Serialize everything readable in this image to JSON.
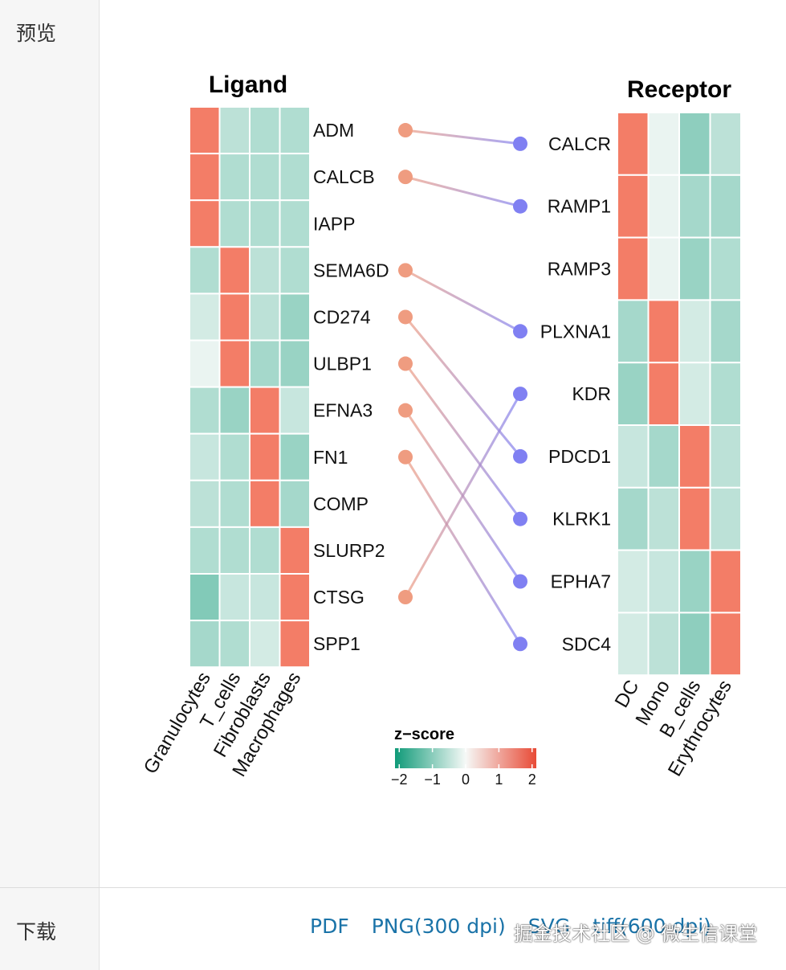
{
  "page": {
    "preview_label": "预览",
    "download_label": "下载",
    "download_links": [
      "PDF",
      "PNG(300 dpi)",
      "SVG",
      "tiff(600 dpi)"
    ],
    "watermark": "掘金技术社区 @ 微生信课堂"
  },
  "chart_data": {
    "type": "heatmap",
    "ligand": {
      "title": "Ligand",
      "rows": [
        "ADM",
        "CALCB",
        "IAPP",
        "SEMA6D",
        "CD274",
        "ULBP1",
        "EFNA3",
        "FN1",
        "COMP",
        "SLURP2",
        "CTSG",
        "SPP1"
      ],
      "columns": [
        "Granulocytes",
        "T_cells",
        "Fibroblasts",
        "Macrophages"
      ],
      "values": [
        [
          2.0,
          -0.5,
          -0.6,
          -0.6
        ],
        [
          2.0,
          -0.6,
          -0.6,
          -0.6
        ],
        [
          2.0,
          -0.6,
          -0.6,
          -0.6
        ],
        [
          -0.6,
          2.0,
          -0.5,
          -0.6
        ],
        [
          -0.3,
          2.0,
          -0.5,
          -0.8
        ],
        [
          -0.1,
          2.0,
          -0.7,
          -0.8
        ],
        [
          -0.6,
          -0.8,
          2.0,
          -0.4
        ],
        [
          -0.4,
          -0.6,
          2.0,
          -0.8
        ],
        [
          -0.5,
          -0.6,
          2.0,
          -0.7
        ],
        [
          -0.6,
          -0.6,
          -0.6,
          2.0
        ],
        [
          -1.0,
          -0.4,
          -0.4,
          2.0
        ],
        [
          -0.7,
          -0.6,
          -0.3,
          2.0
        ]
      ]
    },
    "receptor": {
      "title": "Receptor",
      "rows": [
        "CALCR",
        "RAMP1",
        "RAMP3",
        "PLXNA1",
        "KDR",
        "PDCD1",
        "KLRK1",
        "EPHA7",
        "SDC4"
      ],
      "columns": [
        "DC",
        "Mono",
        "B_cells",
        "Erythrocytes"
      ],
      "values": [
        [
          2.0,
          -0.1,
          -0.9,
          -0.5
        ],
        [
          2.0,
          -0.1,
          -0.7,
          -0.7
        ],
        [
          2.0,
          -0.1,
          -0.8,
          -0.6
        ],
        [
          -0.7,
          2.0,
          -0.3,
          -0.7
        ],
        [
          -0.8,
          2.0,
          -0.3,
          -0.6
        ],
        [
          -0.4,
          -0.7,
          2.0,
          -0.5
        ],
        [
          -0.7,
          -0.5,
          2.0,
          -0.5
        ],
        [
          -0.3,
          -0.4,
          -0.8,
          2.0
        ],
        [
          -0.3,
          -0.5,
          -0.9,
          2.0
        ]
      ]
    },
    "links": [
      [
        "ADM",
        "CALCR"
      ],
      [
        "CALCB",
        "RAMP1"
      ],
      [
        "SEMA6D",
        "PLXNA1"
      ],
      [
        "CD274",
        "PDCD1"
      ],
      [
        "ULBP1",
        "KLRK1"
      ],
      [
        "EFNA3",
        "EPHA7"
      ],
      [
        "FN1",
        "SDC4"
      ],
      [
        "CTSG",
        "KDR"
      ]
    ],
    "legend": {
      "title": "z−score",
      "ticks": [
        "−2",
        "−1",
        "0",
        "1",
        "2"
      ],
      "range": [
        -2,
        2
      ]
    },
    "colors": {
      "low": "#0f9a78",
      "mid": "#f5f9f7",
      "high": "#f37d67",
      "ligand_dot": "#ef9c80",
      "receptor_dot": "#8080f2"
    }
  }
}
